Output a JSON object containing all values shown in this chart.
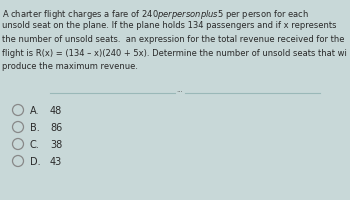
{
  "background_color": "#c8d8d8",
  "text_color": "#2a2a2a",
  "question_lines": [
    "A charter flight charges a fare of $240 per person plus $5 per person for each",
    "unsold seat on the plane. If the plane holds 134 passengers and if x represents",
    "the number of unsold seats.  an expression for the total revenue received for the",
    "flight is R(x) = (134 – x)(240 + 5x). Determine the number of unsold seats that wi",
    "produce the maximum revenue."
  ],
  "options": [
    {
      "label": "A.",
      "value": "48"
    },
    {
      "label": "B.",
      "value": "86"
    },
    {
      "label": "C.",
      "value": "38"
    },
    {
      "label": "D.",
      "value": "43"
    }
  ],
  "divider_color": "#9ab8b8",
  "dots_text": "...",
  "fig_width": 3.5,
  "fig_height": 2.01,
  "dpi": 100
}
